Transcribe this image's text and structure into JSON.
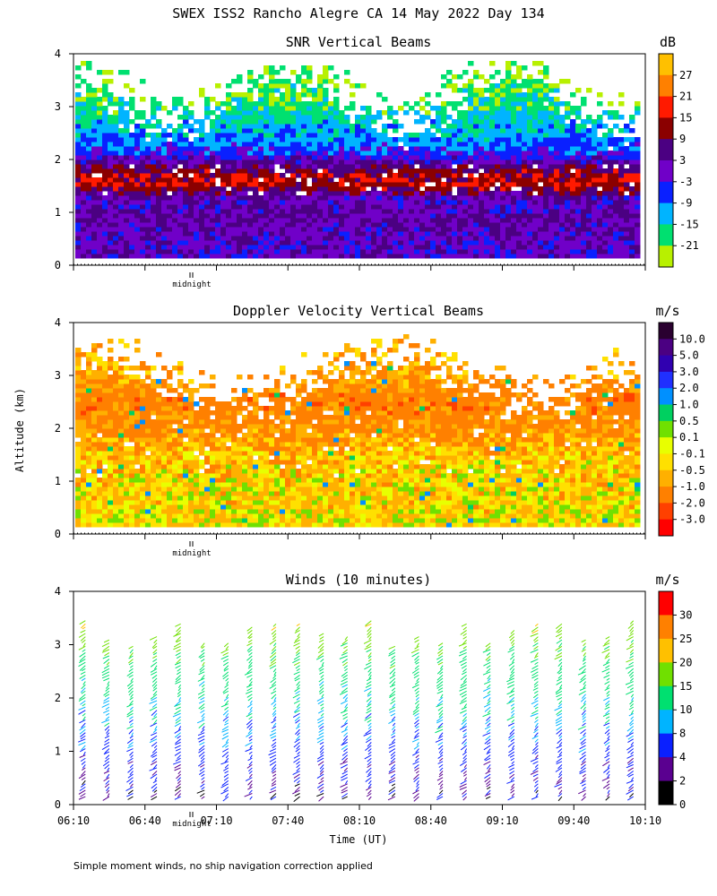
{
  "page": {
    "title": "SWEX ISS2 Rancho Alegre CA  14 May 2022 Day 134",
    "ylabel": "Altitude (km)",
    "xlabel": "Time (UT)",
    "footnote": "Simple moment winds, no ship navigation correction applied",
    "midnight_label": "midnight"
  },
  "chart_data": [
    {
      "type": "heatmap",
      "title": "SNR Vertical Beams",
      "ylabel": "Altitude (km)",
      "ylim": [
        0,
        4
      ],
      "yticks": [
        "0",
        "1",
        "2",
        "3",
        "4"
      ],
      "x_range": [
        "06:10",
        "10:10"
      ],
      "colorbar": {
        "unit": "dB",
        "labels": [
          "27",
          "21",
          "15",
          "9",
          "3",
          "-3",
          "-9",
          "-15",
          "-21"
        ],
        "colors": [
          "#ffc000",
          "#ff8000",
          "#ff1a00",
          "#8b0000",
          "#4b0082",
          "#7000c8",
          "#0a20ff",
          "#00b4ff",
          "#00e070",
          "#b8f000"
        ]
      },
      "profile_summary": [
        {
          "altitude_km": 0.3,
          "snr_db": 0
        },
        {
          "altitude_km": 0.8,
          "snr_db": 3
        },
        {
          "altitude_km": 1.2,
          "snr_db": 0
        },
        {
          "altitude_km": 1.5,
          "snr_db": 15
        },
        {
          "altitude_km": 1.7,
          "snr_db": 12
        },
        {
          "altitude_km": 2.1,
          "snr_db": -6
        },
        {
          "altitude_km": 2.5,
          "snr_db": -12
        },
        {
          "altitude_km": 3.0,
          "snr_db": -18
        },
        {
          "altitude_km": 3.5,
          "snr_db": -21
        }
      ],
      "grid": false
    },
    {
      "type": "heatmap",
      "title": "Doppler Velocity Vertical Beams",
      "ylabel": "Altitude (km)",
      "ylim": [
        0,
        4
      ],
      "yticks": [
        "0",
        "1",
        "2",
        "3",
        "4"
      ],
      "x_range": [
        "06:10",
        "10:10"
      ],
      "colorbar": {
        "unit": "m/s",
        "labels": [
          "10.0",
          "5.0",
          "3.0",
          "2.0",
          "1.0",
          "0.5",
          "0.1",
          "-0.1",
          "-0.5",
          "-1.0",
          "-2.0",
          "-3.0"
        ],
        "colors": [
          "#2a0030",
          "#4b0082",
          "#3000b0",
          "#2030ff",
          "#0090ff",
          "#00d060",
          "#70e000",
          "#e8ff00",
          "#ffe000",
          "#ffb000",
          "#ff8000",
          "#ff4000",
          "#ff0000"
        ]
      },
      "profile_summary": [
        {
          "altitude_km": 0.3,
          "velocity_ms": -0.3
        },
        {
          "altitude_km": 1.0,
          "velocity_ms": -0.4
        },
        {
          "altitude_km": 1.5,
          "velocity_ms": -0.6
        },
        {
          "altitude_km": 2.0,
          "velocity_ms": -1.2
        },
        {
          "altitude_km": 2.5,
          "velocity_ms": -1.5
        },
        {
          "altitude_km": 3.0,
          "velocity_ms": -0.8
        }
      ],
      "grid": false
    },
    {
      "type": "scatter",
      "title": "Winds (10 minutes)",
      "ylabel": "Altitude (km)",
      "xlabel": "Time (UT)",
      "ylim": [
        0,
        4
      ],
      "yticks": [
        "0",
        "1",
        "2",
        "3",
        "4"
      ],
      "xticks": [
        "06:10",
        "06:40",
        "07:10",
        "07:40",
        "08:10",
        "08:40",
        "09:10",
        "09:40",
        "10:10"
      ],
      "x_start_minutes_utc": 370,
      "x_end_minutes_utc": 610,
      "profile_times": [
        "06:15",
        "06:25",
        "06:35",
        "06:45",
        "06:55",
        "07:05",
        "07:15",
        "07:25",
        "07:35",
        "07:45",
        "07:55",
        "08:05",
        "08:15",
        "08:25",
        "08:35",
        "08:45",
        "08:55",
        "09:05",
        "09:15",
        "09:25",
        "09:35",
        "09:45",
        "09:55",
        "10:05"
      ],
      "colorbar": {
        "unit": "m/s",
        "labels": [
          "30",
          "25",
          "20",
          "15",
          "10",
          "8",
          "4",
          "2",
          "0"
        ],
        "colors": [
          "#ff0000",
          "#ff8000",
          "#ffc000",
          "#70e000",
          "#00e070",
          "#00b4ff",
          "#0a20ff",
          "#5a0090",
          "#000000"
        ]
      },
      "speed_profile_summary": [
        {
          "altitude_km": 0.2,
          "speed_ms": 3
        },
        {
          "altitude_km": 0.8,
          "speed_ms": 5
        },
        {
          "altitude_km": 1.2,
          "speed_ms": 7
        },
        {
          "altitude_km": 1.8,
          "speed_ms": 10
        },
        {
          "altitude_km": 2.4,
          "speed_ms": 12
        },
        {
          "altitude_km": 3.0,
          "speed_ms": 16
        },
        {
          "altitude_km": 3.4,
          "speed_ms": 20
        }
      ]
    }
  ]
}
